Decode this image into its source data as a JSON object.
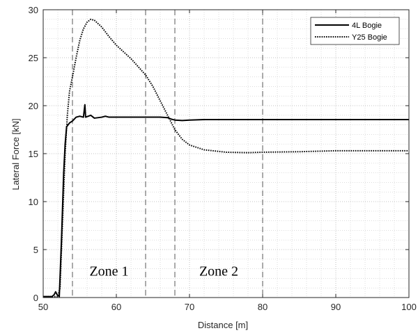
{
  "chart_data": {
    "type": "line",
    "title": "",
    "xlabel": "Distance [m]",
    "ylabel": "Lateral Force [kN]",
    "xlim": [
      50,
      100
    ],
    "ylim": [
      0,
      30
    ],
    "x_ticks": [
      50,
      60,
      70,
      80,
      90,
      100
    ],
    "y_ticks": [
      0,
      5,
      10,
      15,
      20,
      25,
      30
    ],
    "x_tick_labels": [
      "50",
      "60",
      "70",
      "80",
      "90",
      "100"
    ],
    "y_tick_labels": [
      "0",
      "5",
      "10",
      "15",
      "20",
      "25",
      "30"
    ],
    "grid": "minor-dotted",
    "legend_position": "top-right",
    "series": [
      {
        "name": "4L Bogie",
        "style": "solid",
        "color": "#000000",
        "points": [
          [
            50,
            0.1
          ],
          [
            51.2,
            0.1
          ],
          [
            51.5,
            0.3
          ],
          [
            51.7,
            0.6
          ],
          [
            51.9,
            0.3
          ],
          [
            52.2,
            0.1
          ],
          [
            52.5,
            6
          ],
          [
            52.8,
            13
          ],
          [
            53.0,
            16
          ],
          [
            53.2,
            17.8
          ],
          [
            53.6,
            18.2
          ],
          [
            54,
            18.4
          ],
          [
            54.5,
            18.8
          ],
          [
            55,
            18.9
          ],
          [
            55.5,
            18.8
          ],
          [
            55.7,
            20.1
          ],
          [
            55.8,
            18.8
          ],
          [
            56.5,
            19.0
          ],
          [
            57,
            18.7
          ],
          [
            58,
            18.8
          ],
          [
            58.5,
            18.9
          ],
          [
            59,
            18.8
          ],
          [
            60,
            18.8
          ],
          [
            62,
            18.8
          ],
          [
            64,
            18.8
          ],
          [
            66,
            18.8
          ],
          [
            67,
            18.75
          ],
          [
            67.5,
            18.6
          ],
          [
            68,
            18.5
          ],
          [
            69,
            18.45
          ],
          [
            70,
            18.5
          ],
          [
            72,
            18.55
          ],
          [
            75,
            18.55
          ],
          [
            80,
            18.55
          ],
          [
            90,
            18.55
          ],
          [
            100,
            18.55
          ]
        ]
      },
      {
        "name": "Y25 Bogie",
        "style": "dotted",
        "color": "#000000",
        "points": [
          [
            50,
            0.1
          ],
          [
            52,
            0.1
          ],
          [
            52.3,
            1
          ],
          [
            52.5,
            5
          ],
          [
            52.8,
            11
          ],
          [
            53.0,
            15
          ],
          [
            53.3,
            19
          ],
          [
            53.6,
            21.5
          ],
          [
            54,
            23
          ],
          [
            54.5,
            25
          ],
          [
            55,
            26.8
          ],
          [
            55.5,
            28
          ],
          [
            56,
            28.7
          ],
          [
            56.5,
            29.0
          ],
          [
            57,
            28.9
          ],
          [
            58,
            28.2
          ],
          [
            59,
            27.2
          ],
          [
            60,
            26.3
          ],
          [
            62,
            24.9
          ],
          [
            64,
            23.2
          ],
          [
            65,
            22.0
          ],
          [
            66,
            20.5
          ],
          [
            67,
            19.0
          ],
          [
            68,
            17.5
          ],
          [
            69,
            16.5
          ],
          [
            70,
            15.9
          ],
          [
            72,
            15.4
          ],
          [
            75,
            15.15
          ],
          [
            78,
            15.1
          ],
          [
            80,
            15.15
          ],
          [
            85,
            15.2
          ],
          [
            90,
            15.3
          ],
          [
            95,
            15.3
          ],
          [
            100,
            15.3
          ]
        ]
      }
    ],
    "zone_boundaries": [
      54,
      64,
      68,
      80
    ],
    "annotations": [
      {
        "text": "Zone 1",
        "x": 59,
        "y": 2.3
      },
      {
        "text": "Zone 2",
        "x": 74,
        "y": 2.3
      }
    ]
  }
}
